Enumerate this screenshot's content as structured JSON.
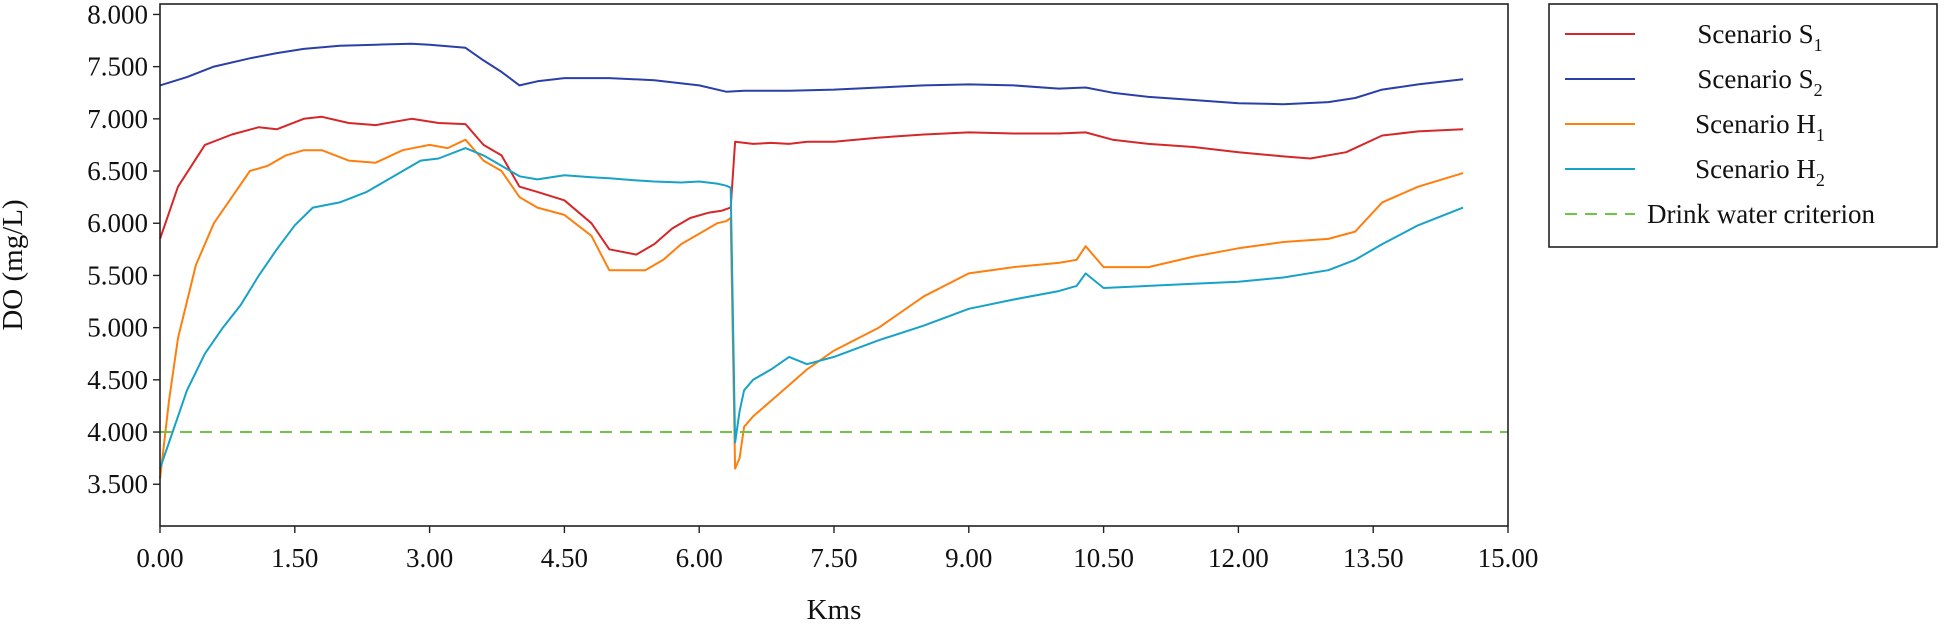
{
  "chart_data": {
    "type": "line",
    "xlabel": "Kms",
    "ylabel": "DO (mg/L)",
    "xlim": [
      0,
      15
    ],
    "ylim": [
      3.1,
      8.1
    ],
    "x_ticks": [
      "0.00",
      "1.50",
      "3.00",
      "4.50",
      "6.00",
      "7.50",
      "9.00",
      "10.50",
      "12.00",
      "13.50",
      "15.00"
    ],
    "y_ticks": [
      "3.500",
      "4.000",
      "4.500",
      "5.000",
      "5.500",
      "6.000",
      "6.500",
      "7.000",
      "7.500",
      "8.000"
    ],
    "grid": false,
    "legend_position": "right",
    "series": [
      {
        "name": "Scenario S",
        "name_sub": "1",
        "color": "#d62728",
        "x": [
          0,
          0.2,
          0.5,
          0.8,
          1.1,
          1.3,
          1.6,
          1.8,
          2.1,
          2.4,
          2.8,
          3.1,
          3.4,
          3.6,
          3.8,
          4.0,
          4.2,
          4.5,
          4.8,
          5.0,
          5.3,
          5.5,
          5.7,
          5.9,
          6.1,
          6.25,
          6.35,
          6.4,
          6.6,
          6.8,
          7.0,
          7.2,
          7.5,
          8.0,
          8.5,
          9.0,
          9.5,
          10.0,
          10.3,
          10.6,
          11.0,
          11.5,
          12.0,
          12.5,
          12.8,
          13.2,
          13.6,
          14.0,
          14.5
        ],
        "y": [
          5.85,
          6.35,
          6.75,
          6.85,
          6.92,
          6.9,
          7.0,
          7.02,
          6.96,
          6.94,
          7.0,
          6.96,
          6.95,
          6.75,
          6.65,
          6.35,
          6.3,
          6.22,
          6.0,
          5.75,
          5.7,
          5.8,
          5.95,
          6.05,
          6.1,
          6.12,
          6.15,
          6.78,
          6.76,
          6.77,
          6.76,
          6.78,
          6.78,
          6.82,
          6.85,
          6.87,
          6.86,
          6.86,
          6.87,
          6.8,
          6.76,
          6.73,
          6.68,
          6.64,
          6.62,
          6.68,
          6.84,
          6.88,
          6.9
        ]
      },
      {
        "name": "Scenario S",
        "name_sub": "2",
        "color": "#2b3fa8",
        "x": [
          0,
          0.3,
          0.6,
          1.0,
          1.3,
          1.6,
          2.0,
          2.4,
          2.8,
          3.0,
          3.4,
          3.6,
          3.8,
          4.0,
          4.2,
          4.5,
          5.0,
          5.5,
          6.0,
          6.3,
          6.5,
          7.0,
          7.5,
          8.0,
          8.5,
          9.0,
          9.5,
          10.0,
          10.3,
          10.6,
          11.0,
          11.5,
          12.0,
          12.5,
          13.0,
          13.3,
          13.6,
          14.0,
          14.5
        ],
        "y": [
          7.32,
          7.4,
          7.5,
          7.58,
          7.63,
          7.67,
          7.7,
          7.71,
          7.72,
          7.71,
          7.68,
          7.56,
          7.45,
          7.32,
          7.36,
          7.39,
          7.39,
          7.37,
          7.32,
          7.26,
          7.27,
          7.27,
          7.28,
          7.3,
          7.32,
          7.33,
          7.32,
          7.29,
          7.3,
          7.25,
          7.21,
          7.18,
          7.15,
          7.14,
          7.16,
          7.2,
          7.28,
          7.33,
          7.38
        ]
      },
      {
        "name": "Scenario H",
        "name_sub": "1",
        "color": "#ff7f0e",
        "x": [
          0,
          0.1,
          0.2,
          0.4,
          0.6,
          0.8,
          1.0,
          1.2,
          1.4,
          1.6,
          1.8,
          2.1,
          2.4,
          2.7,
          3.0,
          3.2,
          3.4,
          3.6,
          3.8,
          4.0,
          4.2,
          4.5,
          4.8,
          5.0,
          5.2,
          5.4,
          5.6,
          5.8,
          6.0,
          6.2,
          6.3,
          6.35,
          6.4,
          6.45,
          6.5,
          6.6,
          6.8,
          7.0,
          7.2,
          7.5,
          8.0,
          8.5,
          9.0,
          9.5,
          10.0,
          10.2,
          10.3,
          10.5,
          11.0,
          11.5,
          12.0,
          12.5,
          13.0,
          13.3,
          13.6,
          14.0,
          14.5
        ],
        "y": [
          3.55,
          4.3,
          4.9,
          5.6,
          6.0,
          6.25,
          6.5,
          6.55,
          6.65,
          6.7,
          6.7,
          6.6,
          6.58,
          6.7,
          6.75,
          6.72,
          6.8,
          6.6,
          6.5,
          6.25,
          6.15,
          6.08,
          5.88,
          5.55,
          5.55,
          5.55,
          5.65,
          5.8,
          5.9,
          6.0,
          6.02,
          6.05,
          3.65,
          3.75,
          4.05,
          4.15,
          4.3,
          4.45,
          4.6,
          4.78,
          5.0,
          5.3,
          5.52,
          5.58,
          5.62,
          5.65,
          5.78,
          5.58,
          5.58,
          5.68,
          5.76,
          5.82,
          5.85,
          5.92,
          6.2,
          6.35,
          6.48
        ]
      },
      {
        "name": "Scenario H",
        "name_sub": "2",
        "color": "#17a2c7",
        "x": [
          0,
          0.1,
          0.3,
          0.5,
          0.7,
          0.9,
          1.1,
          1.3,
          1.5,
          1.7,
          2.0,
          2.3,
          2.6,
          2.9,
          3.1,
          3.4,
          3.6,
          3.8,
          4.0,
          4.2,
          4.5,
          4.8,
          5.0,
          5.3,
          5.5,
          5.8,
          6.0,
          6.2,
          6.3,
          6.35,
          6.4,
          6.45,
          6.5,
          6.6,
          6.8,
          7.0,
          7.2,
          7.5,
          8.0,
          8.5,
          9.0,
          9.5,
          10.0,
          10.2,
          10.3,
          10.5,
          11.0,
          11.5,
          12.0,
          12.5,
          13.0,
          13.3,
          13.6,
          14.0,
          14.5
        ],
        "y": [
          3.65,
          3.9,
          4.4,
          4.75,
          5.0,
          5.22,
          5.5,
          5.75,
          5.98,
          6.15,
          6.2,
          6.3,
          6.45,
          6.6,
          6.62,
          6.72,
          6.65,
          6.55,
          6.45,
          6.42,
          6.46,
          6.44,
          6.43,
          6.41,
          6.4,
          6.39,
          6.4,
          6.38,
          6.36,
          6.34,
          3.9,
          4.2,
          4.4,
          4.5,
          4.6,
          4.72,
          4.65,
          4.72,
          4.88,
          5.02,
          5.18,
          5.27,
          5.35,
          5.4,
          5.52,
          5.38,
          5.4,
          5.42,
          5.44,
          5.48,
          5.55,
          5.65,
          5.8,
          5.98,
          6.15
        ]
      },
      {
        "name": "Drink water criterion",
        "color": "#6cc644",
        "dashed": true,
        "x": [
          0,
          15
        ],
        "y": [
          4.0,
          4.0
        ]
      }
    ]
  }
}
